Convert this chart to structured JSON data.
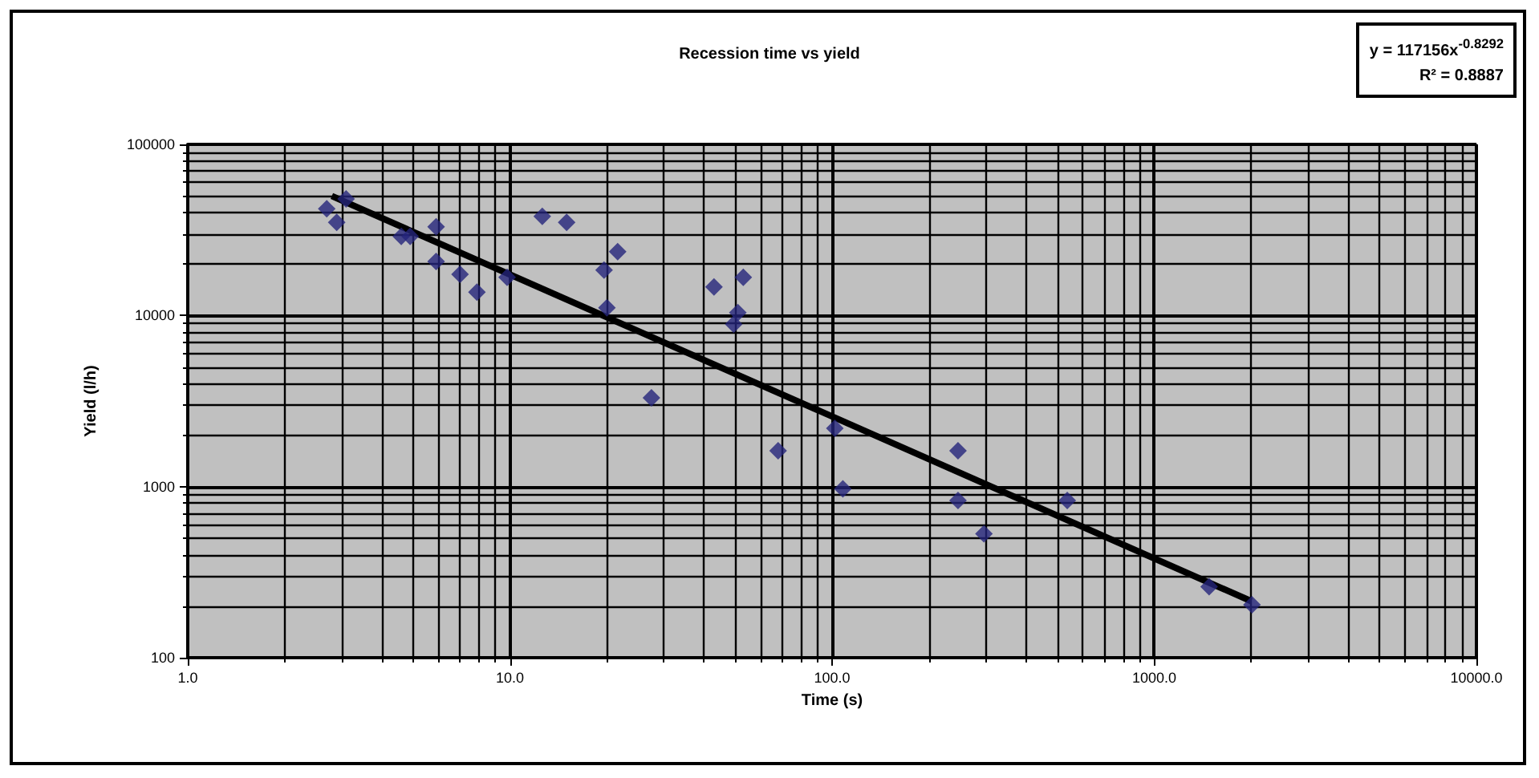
{
  "chart_data": {
    "type": "scatter",
    "title": "Recession time vs yield",
    "xlabel": "Time (s)",
    "ylabel": "Yield (l/h)",
    "annotations": [
      "y = 117156x$^{-0.8292}$",
      "R² = 0.8887"
    ],
    "log": "xy",
    "grid": true,
    "marker": "diamond",
    "xlim": [
      1,
      10000
    ],
    "xticks": [
      {
        "value": 1,
        "label": "1.0"
      },
      {
        "value": 10,
        "label": "10.0"
      },
      {
        "value": 100,
        "label": "100.0"
      },
      {
        "value": 1000,
        "label": "1000.0"
      },
      {
        "value": 10000,
        "label": "10000.0"
      }
    ],
    "ylim": [
      100,
      100000
    ],
    "yticks": [
      100,
      1000,
      10000,
      100000
    ],
    "series": [
      {
        "color": "#24247a",
        "x": [
          2.7,
          2.9,
          3.1,
          4.6,
          4.9,
          5.9,
          5.9,
          7,
          7.9,
          9.8,
          12.6,
          15,
          19.6,
          20,
          21.6,
          27.5,
          43,
          49.5,
          51,
          53,
          68,
          102,
          108,
          246,
          246,
          296,
          537,
          1480,
          2010
        ],
        "values": [
          42000,
          35000,
          48000,
          29000,
          29000,
          33000,
          20700,
          17400,
          13700,
          16700,
          38000,
          35000,
          18400,
          11100,
          23600,
          3300,
          14700,
          8900,
          10400,
          16700,
          1620,
          2190,
          970,
          1620,
          830,
          530,
          830,
          260,
          204
        ]
      },
      {
        "type": "line",
        "color": "#000000",
        "marker": "none",
        "x": [
          2.8,
          2000
        ],
        "values": [
          49900,
          214
        ]
      }
    ]
  }
}
